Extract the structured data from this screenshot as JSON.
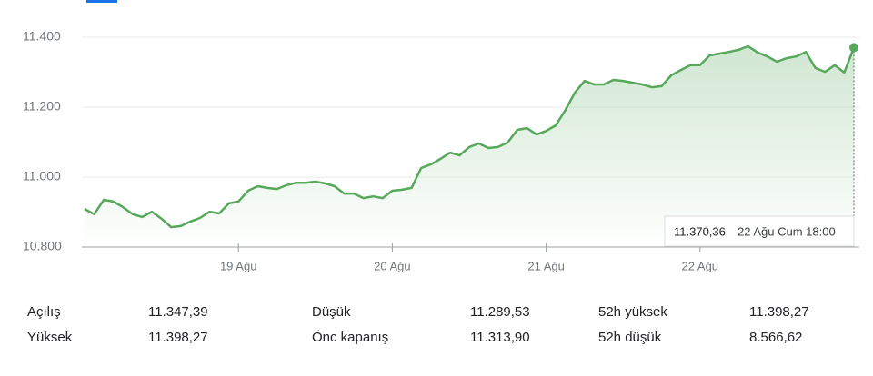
{
  "chart_data": {
    "type": "line",
    "categories": [
      null,
      null,
      null,
      null,
      null,
      null,
      null,
      null,
      null,
      null,
      null,
      null,
      null,
      null,
      null,
      null,
      "19 Ağu",
      null,
      null,
      null,
      null,
      null,
      null,
      null,
      null,
      null,
      null,
      null,
      null,
      null,
      null,
      null,
      "20 Ağu",
      null,
      null,
      null,
      null,
      null,
      null,
      null,
      null,
      null,
      null,
      null,
      null,
      null,
      null,
      null,
      "21 Ağu",
      null,
      null,
      null,
      null,
      null,
      null,
      null,
      null,
      null,
      null,
      null,
      null,
      null,
      null,
      null,
      "22 Ağu",
      null,
      null,
      null,
      null,
      null,
      null,
      null,
      null,
      null,
      null,
      null,
      null,
      null,
      null,
      null,
      null
    ],
    "series": [
      {
        "color": "#57a85b",
        "values": [
          10909,
          10894,
          10935,
          10930,
          10914,
          10894,
          10886,
          10901,
          10881,
          10857,
          10860,
          10873,
          10883,
          10901,
          10896,
          10925,
          10930,
          10961,
          10974,
          10969,
          10966,
          10977,
          10984,
          10984,
          10987,
          10982,
          10974,
          10953,
          10953,
          10940,
          10945,
          10940,
          10961,
          10964,
          10969,
          11026,
          11036,
          11052,
          11070,
          11062,
          11086,
          11096,
          11083,
          11086,
          11099,
          11135,
          11140,
          11122,
          11132,
          11148,
          11192,
          11242,
          11275,
          11265,
          11265,
          11278,
          11275,
          11270,
          11265,
          11257,
          11260,
          11291,
          11306,
          11320,
          11320,
          11348,
          11353,
          11358,
          11364,
          11374,
          11356,
          11345,
          11330,
          11340,
          11345,
          11358,
          11312,
          11301,
          11320,
          11299,
          11370.36
        ]
      }
    ],
    "ylim": [
      10800,
      11400
    ],
    "yticks": [
      {
        "value": 10800,
        "label": "10.800"
      },
      {
        "value": 11000,
        "label": "11.000"
      },
      {
        "value": 11200,
        "label": "11.200"
      },
      {
        "value": 11400,
        "label": "11.400"
      }
    ],
    "grid": true,
    "tooltip": {
      "label": "11.370,36",
      "time": "22 Ağu Cum 18:00"
    }
  },
  "stats": {
    "rows": [
      [
        "Açılış",
        "11.347,39",
        "Düşük",
        "11.289,53",
        "52h yüksek",
        "11.398,27"
      ],
      [
        "Yüksek",
        "11.398,27",
        "Önc kapanış",
        "11.313,90",
        "52h düşük",
        "8.566,62"
      ]
    ]
  }
}
